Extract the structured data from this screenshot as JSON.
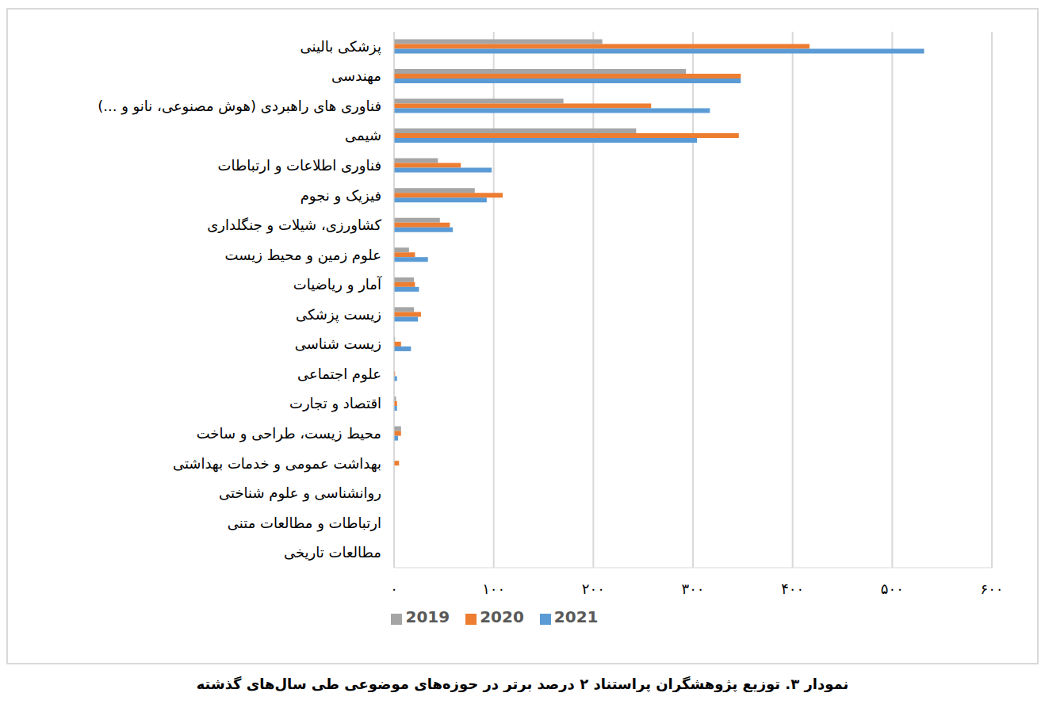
{
  "chart_data": {
    "type": "bar",
    "orientation": "horizontal",
    "title": "نمودار ۳. توزیع پژوهشگران پراستناد ۲ درصد برتر در حوزه‌های موضوعی طی سال‌های گذشته",
    "categories": [
      "پزشکی بالینی",
      "مهندسی",
      "فناوری های راهبردی (هوش مصنوعی، نانو و ...)",
      "شیمی",
      "فناوری اطلاعات و ارتباطات",
      "فیزیک و نجوم",
      "کشاورزی، شیلات و جنگلداری",
      "علوم زمین و محیط زیست",
      "آمار و ریاضیات",
      "زیست پزشکی",
      "زیست شناسی",
      "علوم اجتماعی",
      "اقتصاد و تجارت",
      "محیط زیست، طراحی و ساخت",
      "بهداشت عمومی و خدمات بهداشتی",
      "روانشناسی و علوم شناختی",
      "ارتباطات و مطالعات متنی",
      "مطالعات تاریخی"
    ],
    "series": [
      {
        "name": "2019",
        "color": "#a5a5a5",
        "values": [
          209,
          293,
          170,
          243,
          44,
          81,
          46,
          15,
          20,
          20,
          1,
          0,
          2,
          7,
          0,
          0,
          0,
          0
        ]
      },
      {
        "name": "2020",
        "color": "#ed7d31",
        "values": [
          417,
          348,
          258,
          346,
          67,
          109,
          56,
          21,
          21,
          27,
          7,
          1,
          3,
          7,
          5,
          0,
          0,
          0
        ]
      },
      {
        "name": "2021",
        "color": "#5b9bd5",
        "values": [
          532,
          348,
          317,
          304,
          98,
          93,
          59,
          34,
          25,
          24,
          17,
          3,
          3,
          4,
          0,
          0,
          0,
          0
        ]
      }
    ],
    "xlim": [
      0,
      600
    ],
    "xticks": [
      {
        "value": 0,
        "label": "۰"
      },
      {
        "value": 100,
        "label": "۱۰۰"
      },
      {
        "value": 200,
        "label": "۲۰۰"
      },
      {
        "value": 300,
        "label": "۳۰۰"
      },
      {
        "value": 400,
        "label": "۴۰۰"
      },
      {
        "value": 500,
        "label": "۵۰۰"
      },
      {
        "value": 600,
        "label": "۶۰۰"
      }
    ],
    "grid": true,
    "legend": "bottom"
  }
}
